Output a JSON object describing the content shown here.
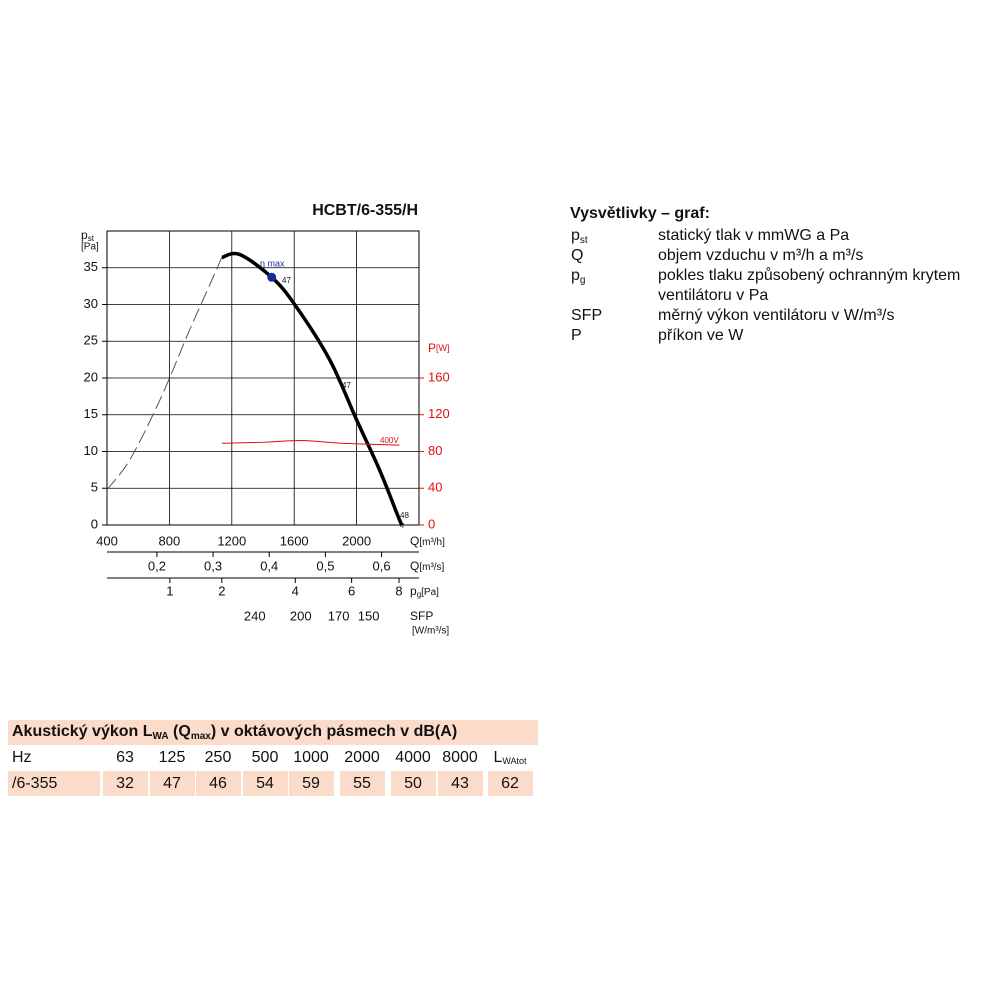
{
  "chart_data": {
    "type": "line",
    "title": "HCBT/6-355/H",
    "xlim": [
      400,
      2400
    ],
    "xticks": [
      400,
      800,
      1200,
      1600,
      2000
    ],
    "ylim": [
      0,
      40
    ],
    "yticks": [
      0,
      5,
      10,
      15,
      20,
      25,
      30,
      35
    ],
    "y2lim": [
      0,
      320
    ],
    "y2ticks": [
      0,
      40,
      80,
      120,
      160
    ],
    "grid": true,
    "y_label": "p",
    "y_label_sub": "st",
    "y_unit": "[Pa]",
    "y2_label": "P",
    "y2_unit": "[W]",
    "y2_color": "#e01010",
    "x_label": "Q",
    "x_unit": "[m³/h]",
    "series": [
      {
        "color": "#000000",
        "style": "solid",
        "x": [
          1136,
          1251,
          1456,
          1603,
          1827,
          2000,
          2147,
          2275,
          2294
        ],
        "values": [
          36.4,
          36.8,
          33.7,
          30.0,
          22.5,
          14.3,
          7.5,
          0.7,
          0
        ]
      },
      {
        "color": "#555555",
        "style": "dashed",
        "x": [
          400,
          547,
          739,
          931,
          1059,
          1136
        ],
        "values": [
          4.8,
          8.9,
          17.0,
          26.6,
          32.7,
          36.4
        ]
      },
      {
        "color": "#e01010",
        "style": "thin",
        "axis": "y2",
        "x": [
          1136,
          1400,
          1650,
          1900,
          2275
        ],
        "values": [
          89,
          90,
          92,
          89,
          87
        ]
      },
      {
        "color": "#1a2a9a",
        "style": "marker",
        "x": [
          1456
        ],
        "values": [
          33.7
        ]
      }
    ],
    "annotations": [
      "η max",
      "47",
      "47",
      "48",
      "400V"
    ],
    "secondary_axes": [
      {
        "label": "Q",
        "unit": "[m³/s]",
        "ticks": [
          {
            "value": 720,
            "label": "0,2"
          },
          {
            "value": 1080,
            "label": "0,3"
          },
          {
            "value": 1440,
            "label": "0,4"
          },
          {
            "value": 1800,
            "label": "0,5"
          },
          {
            "value": 2160,
            "label": "0,6"
          }
        ]
      },
      {
        "label": "p",
        "label_sub": "g",
        "unit": "[Pa]",
        "ticks": [
          {
            "value": 803,
            "label": "1"
          },
          {
            "value": 1136,
            "label": "2"
          },
          {
            "value": 1607,
            "label": "4"
          },
          {
            "value": 1968,
            "label": "6"
          },
          {
            "value": 2272,
            "label": "8"
          }
        ]
      },
      {
        "label": "SFP",
        "unit": "[W/m³/s]",
        "ticks": [
          {
            "value": 1347,
            "label": "240"
          },
          {
            "value": 1642,
            "label": "200"
          },
          {
            "value": 1885,
            "label": "170"
          },
          {
            "value": 2077,
            "label": "150"
          }
        ]
      }
    ]
  },
  "legend_box": {
    "title": "Vysvětlivky – graf:",
    "items": [
      {
        "symbol": "p",
        "sub": "st",
        "text": [
          "statický tlak v mmWG a Pa"
        ]
      },
      {
        "symbol": "Q",
        "text": [
          "objem vzduchu v m³/h a m³/s"
        ]
      },
      {
        "symbol": "p",
        "sub": "g",
        "text": [
          "pokles tlaku způsobený ochranným krytem",
          "ventilátoru v Pa"
        ]
      },
      {
        "symbol": "SFP",
        "text": [
          "měrný výkon ventilátoru v W/m³/s"
        ]
      },
      {
        "symbol": "P",
        "text": [
          "příkon ve W"
        ]
      }
    ]
  },
  "table": {
    "title_parts": [
      "Akustický výkon L",
      "WA",
      " (Q",
      "max",
      ") v oktávových pásmech v dB(A)"
    ],
    "header": [
      "Hz",
      "63",
      "125",
      "250",
      "500",
      "1000",
      "2000",
      "4000",
      "8000",
      "L"
    ],
    "header_sub": "WAtot",
    "rows": [
      [
        "/6-355",
        "32",
        "47",
        "46",
        "54",
        "59",
        "55",
        "50",
        "43",
        "62"
      ]
    ]
  }
}
